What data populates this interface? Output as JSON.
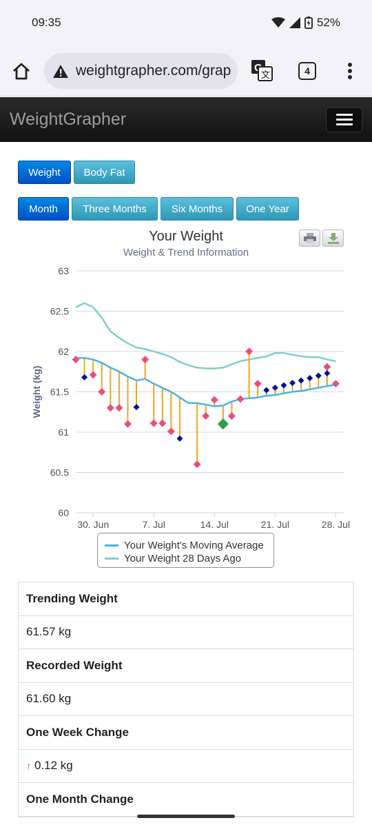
{
  "status_bar": {
    "time": "09:35",
    "battery": "52%"
  },
  "browser": {
    "url": "weightgrapher.com/grap",
    "tab_count": "4"
  },
  "navbar": {
    "brand": "WeightGrapher"
  },
  "metric_buttons": {
    "weight": "Weight",
    "body_fat": "Body Fat"
  },
  "range_buttons": {
    "month": "Month",
    "three_months": "Three Months",
    "six_months": "Six Months",
    "one_year": "One Year"
  },
  "chart_data": {
    "type": "line",
    "title": "Your Weight",
    "subtitle": "Weight & Trend Information",
    "ylabel": "Weight (kg)",
    "xlabel": "",
    "ylim": [
      60,
      63
    ],
    "yticks": [
      "63",
      "62.5",
      "62",
      "61.5",
      "61",
      "60.5",
      "60"
    ],
    "xticks": [
      {
        "day": 2,
        "label": "30. Jun"
      },
      {
        "day": 9,
        "label": "7. Jul"
      },
      {
        "day": 16,
        "label": "14. Jul"
      },
      {
        "day": 23,
        "label": "21. Jul"
      },
      {
        "day": 30,
        "label": "28. Jul"
      }
    ],
    "x_domain": [
      0,
      31
    ],
    "grid": true,
    "legend_position": "bottom-center",
    "colors": {
      "trend": "#4ab3e8",
      "ago": "#7fcfc7",
      "recorded": "#e94f7d",
      "estimated": "#07108f",
      "stem": "#f0a621",
      "today": "#2e9d4f",
      "axis": "#cfd6e6"
    },
    "series": [
      {
        "name": "Your Weight's Moving Average",
        "x": [
          0,
          1,
          2,
          3,
          4,
          5,
          6,
          7,
          8,
          9,
          10,
          11,
          12,
          13,
          14,
          15,
          16,
          17,
          18,
          19,
          20,
          21,
          22,
          23,
          24,
          25,
          26,
          27,
          28,
          29,
          30
        ],
        "y": [
          61.92,
          61.92,
          61.9,
          61.86,
          61.8,
          61.75,
          61.69,
          61.64,
          61.66,
          61.6,
          61.55,
          61.5,
          61.43,
          61.36,
          61.36,
          61.34,
          61.32,
          61.33,
          61.38,
          61.41,
          61.42,
          61.43,
          61.45,
          61.46,
          61.48,
          61.5,
          61.51,
          61.53,
          61.55,
          61.57,
          61.59
        ]
      },
      {
        "name": "Your Weight 28 Days Ago",
        "x": [
          0,
          1,
          2,
          3,
          4,
          5,
          6,
          7,
          8,
          9,
          10,
          11,
          12,
          13,
          14,
          15,
          16,
          17,
          18,
          19,
          20,
          21,
          22,
          23,
          24,
          25,
          26,
          27,
          28,
          29,
          30
        ],
        "y": [
          62.55,
          62.6,
          62.55,
          62.42,
          62.25,
          62.17,
          62.1,
          62.05,
          62.03,
          62.0,
          61.97,
          61.93,
          61.87,
          61.83,
          61.8,
          61.79,
          61.79,
          61.8,
          61.84,
          61.88,
          61.9,
          61.92,
          61.94,
          61.98,
          61.98,
          61.96,
          61.94,
          61.93,
          61.93,
          61.9,
          61.88
        ]
      }
    ],
    "recorded": {
      "x": [
        0,
        2,
        3,
        4,
        5,
        6,
        8,
        9,
        10,
        11,
        14,
        15,
        16,
        18,
        19,
        20,
        21,
        29,
        30
      ],
      "y": [
        61.9,
        61.71,
        61.5,
        61.3,
        61.3,
        61.1,
        61.9,
        61.11,
        61.11,
        61.01,
        60.6,
        61.2,
        61.4,
        61.2,
        61.41,
        62.0,
        61.6,
        61.81,
        61.6
      ]
    },
    "estimated": {
      "x": [
        1,
        7,
        12,
        22,
        23,
        24,
        25,
        26,
        27,
        28,
        29
      ],
      "y": [
        61.68,
        61.31,
        60.92,
        61.52,
        61.55,
        61.58,
        61.61,
        61.64,
        61.67,
        61.7,
        61.73
      ]
    },
    "today": {
      "x": 17,
      "y": 61.1
    }
  },
  "stats": [
    {
      "label": "Trending Weight",
      "value": "61.57 kg"
    },
    {
      "label": "Recorded Weight",
      "value": "61.60 kg"
    },
    {
      "label": "One Week Change",
      "value": "0.12 kg",
      "direction": "up"
    },
    {
      "label": "One Month Change",
      "value": ""
    }
  ]
}
